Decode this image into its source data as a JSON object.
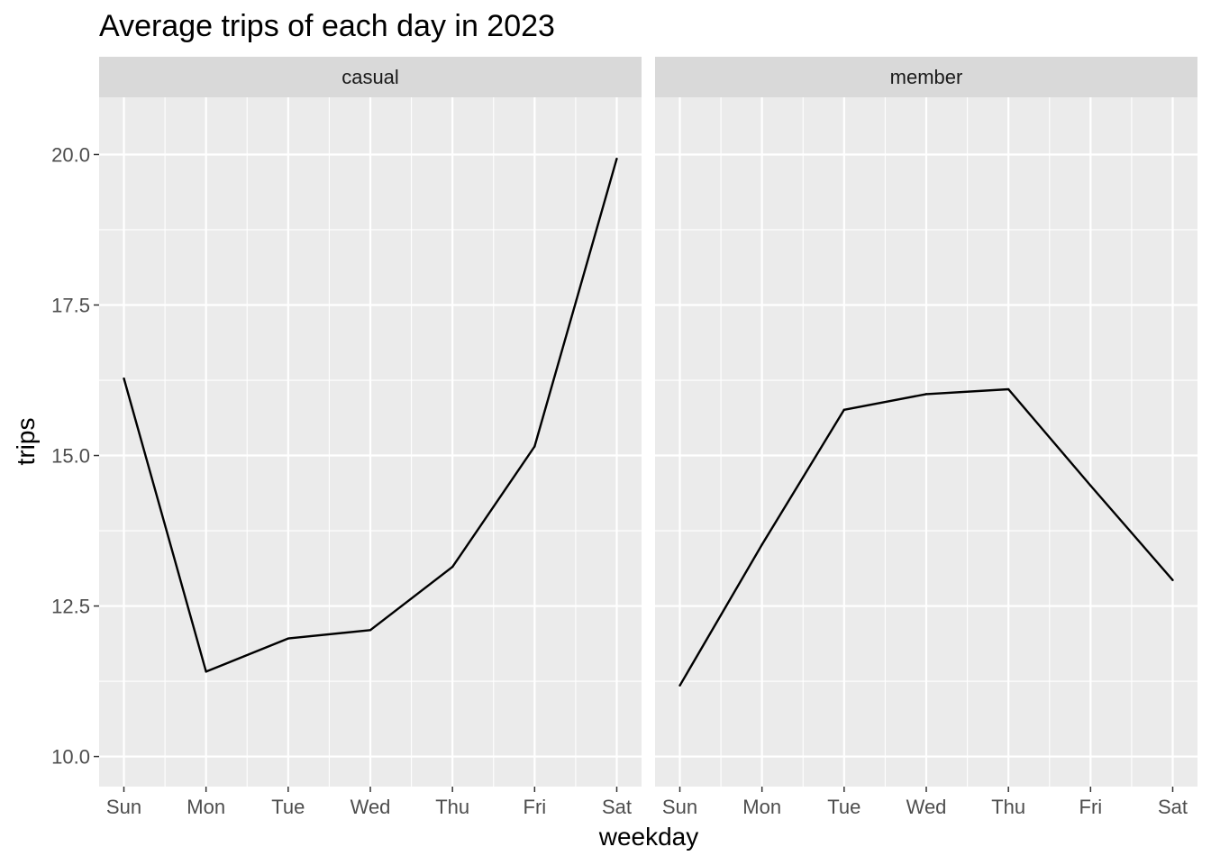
{
  "chart_data": {
    "type": "line",
    "title": "Average trips of each day in 2023",
    "xlabel": "weekday",
    "ylabel": "trips",
    "categories": [
      "Sun",
      "Mon",
      "Tue",
      "Wed",
      "Thu",
      "Fri",
      "Sat"
    ],
    "ylim": [
      9.5,
      20.95
    ],
    "yticks": [
      10.0,
      12.5,
      15.0,
      17.5,
      20.0
    ],
    "ytick_labels": [
      "10.0",
      "12.5",
      "15.0",
      "17.5",
      "20.0"
    ],
    "grid": true,
    "legend": "none",
    "colors": {
      "panel_bg": "#ebebeb",
      "strip_bg": "#d9d9d9",
      "grid": "#ffffff",
      "line": "#000000"
    },
    "facets": [
      {
        "name": "casual",
        "values": [
          16.28,
          11.41,
          11.96,
          12.1,
          13.15,
          15.15,
          19.93
        ]
      },
      {
        "name": "member",
        "values": [
          11.18,
          13.52,
          15.76,
          16.02,
          16.1,
          14.5,
          12.93
        ]
      }
    ]
  }
}
